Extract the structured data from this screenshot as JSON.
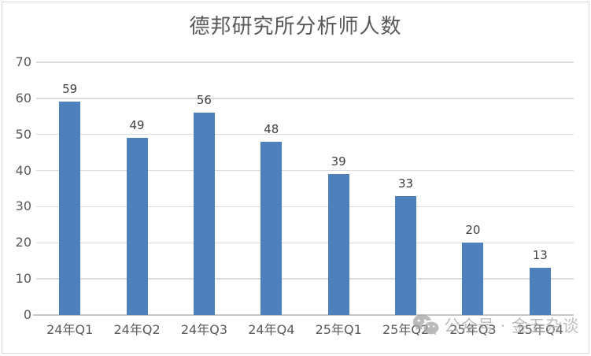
{
  "title": "德邦研究所分析师人数",
  "watermark": {
    "icon": "wechat-icon",
    "text": "公众号 · 金五杂谈"
  },
  "chart_data": {
    "type": "bar",
    "title": "德邦研究所分析师人数",
    "categories": [
      "24年Q1",
      "24年Q2",
      "24年Q3",
      "24年Q4",
      "25年Q1",
      "25年Q2",
      "25年Q3",
      "25年Q4"
    ],
    "values": [
      59,
      49,
      56,
      48,
      39,
      33,
      20,
      13
    ],
    "xlabel": "",
    "ylabel": "",
    "ylim": [
      0,
      70
    ],
    "ytick_step": 10,
    "grid": true,
    "legend": "none",
    "bar_color": "#4e80bd",
    "grid_color": "#dcdcdc",
    "axis_color": "#c6c6c6",
    "tick_label_color": "#595959",
    "data_label_color": "#404040",
    "title_color": "#595959"
  }
}
